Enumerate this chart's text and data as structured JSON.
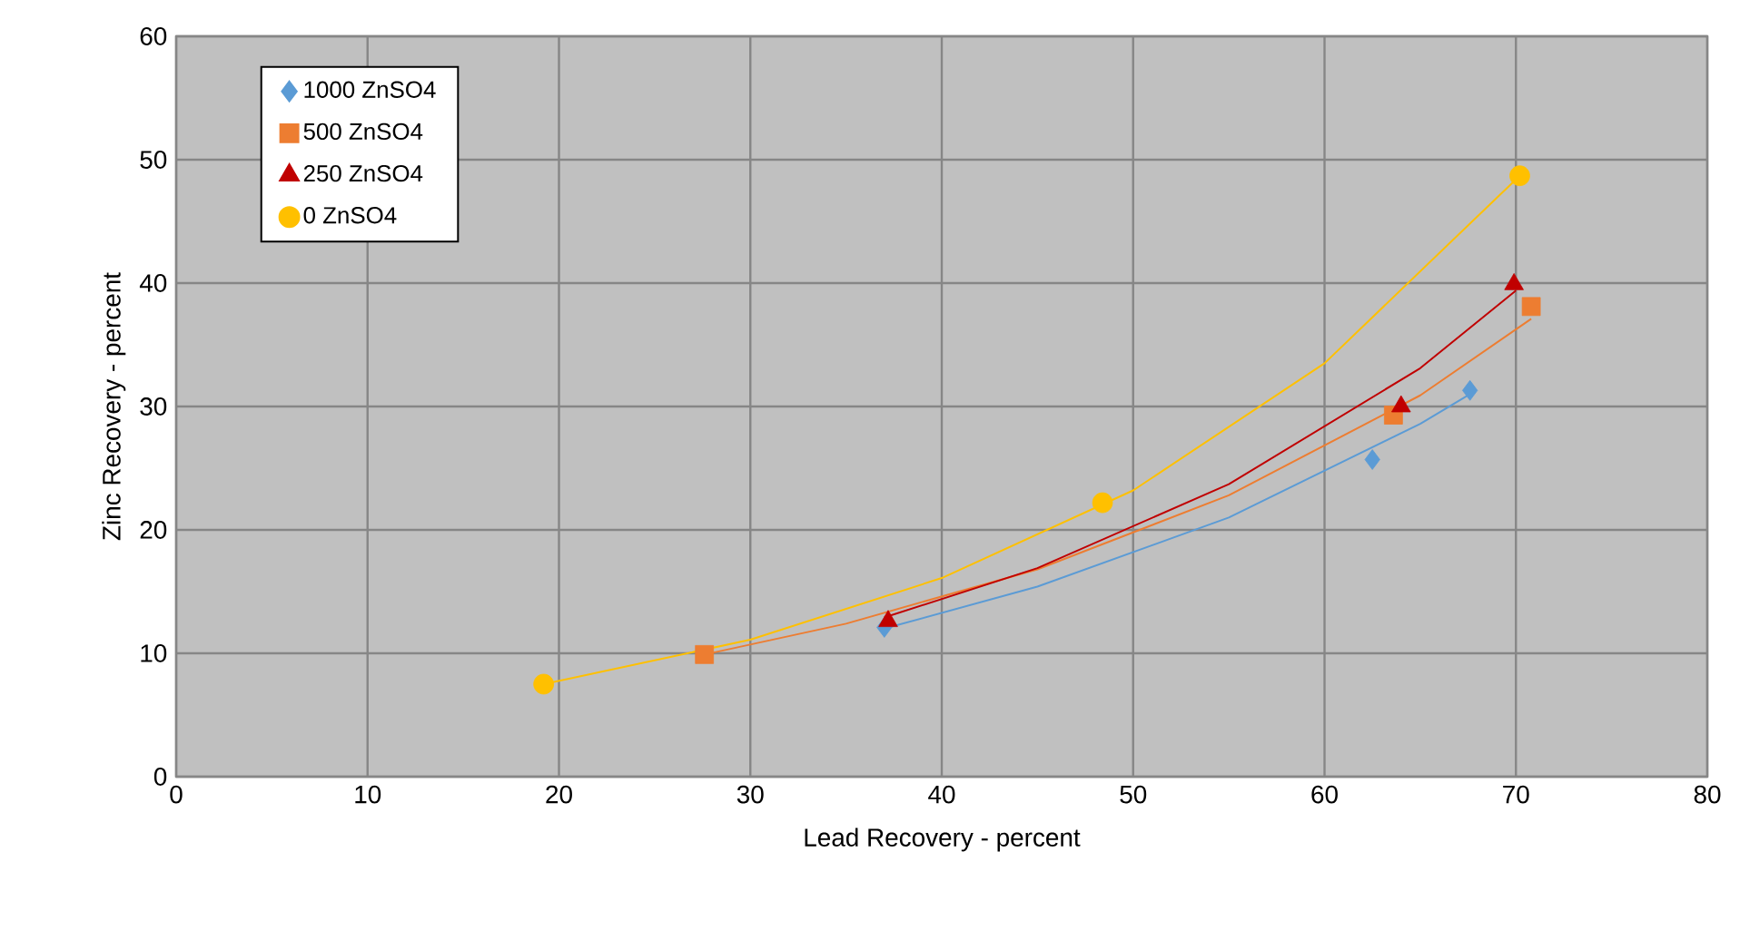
{
  "chart_data": {
    "type": "scatter",
    "xlabel": "Lead Recovery - percent",
    "ylabel": "Zinc Recovery - percent",
    "xlim": [
      0,
      80
    ],
    "xticks": [
      0,
      10,
      20,
      30,
      40,
      50,
      60,
      70,
      80
    ],
    "ylim": [
      0,
      60
    ],
    "yticks": [
      0,
      10,
      20,
      30,
      40,
      50,
      60
    ],
    "grid": true,
    "legend": "top left",
    "series": [
      {
        "name": "1000 ZnSO4",
        "color": "#5b9bd5",
        "marker": "diamond",
        "x": [
          37.0,
          62.5,
          67.6
        ],
        "values": [
          12.1,
          25.7,
          31.3
        ]
      },
      {
        "name": "500 ZnSO4",
        "color": "#ed7d31",
        "marker": "square",
        "x": [
          27.6,
          63.6,
          70.8
        ],
        "values": [
          9.9,
          29.3,
          38.1
        ]
      },
      {
        "name": "250 ZnSO4",
        "color": "#c00000",
        "marker": "triangle",
        "x": [
          37.2,
          64.0,
          69.9
        ],
        "values": [
          12.6,
          30.0,
          39.9
        ]
      },
      {
        "name": "0 ZnSO4",
        "color": "#ffc000",
        "marker": "circle",
        "x": [
          19.2,
          48.4,
          70.2
        ],
        "values": [
          7.5,
          22.2,
          48.7
        ]
      },
      {
        "type": "line",
        "color": "#5b9bd5",
        "marker": "none",
        "x": [
          37.0,
          45,
          55,
          65,
          67.6
        ],
        "values": [
          12.0,
          15.4,
          21.0,
          28.6,
          31.0
        ]
      },
      {
        "type": "line",
        "color": "#ed7d31",
        "marker": "none",
        "x": [
          27.6,
          35,
          45,
          55,
          65,
          70.8
        ],
        "values": [
          9.9,
          12.4,
          16.8,
          22.8,
          30.9,
          37.1
        ]
      },
      {
        "type": "line",
        "color": "#c00000",
        "marker": "none",
        "x": [
          37.0,
          45,
          55,
          65,
          70.0
        ],
        "values": [
          12.9,
          16.9,
          23.7,
          33.1,
          39.4
        ]
      },
      {
        "type": "line",
        "color": "#ffc000",
        "marker": "none",
        "x": [
          19.2,
          30,
          40,
          50,
          60,
          70.2
        ],
        "values": [
          7.5,
          11.1,
          16.1,
          23.2,
          33.5,
          48.7
        ]
      }
    ]
  }
}
